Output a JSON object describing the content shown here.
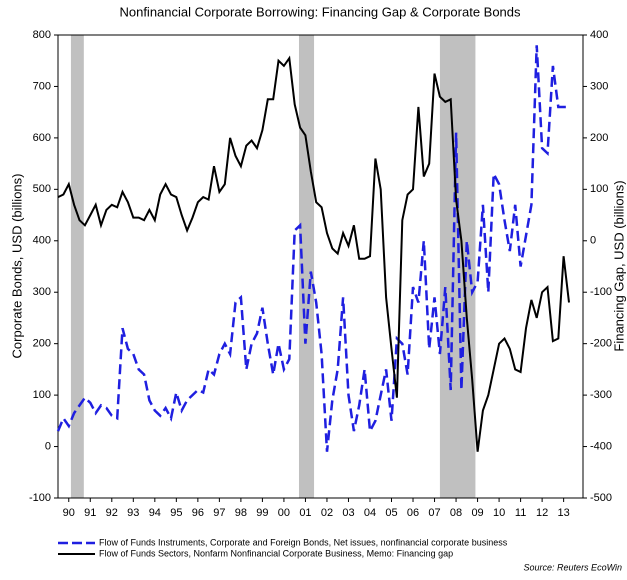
{
  "chart_data": {
    "type": "line",
    "title": "Nonfinancial Corporate Borrowing: Financing Gap & Corporate Bonds",
    "ylabel": "Corporate Bonds, USD (billions)",
    "y2label": "Financing Gap, USD (billions)",
    "source": "Source: Reuters EcoWin",
    "x": [
      1990,
      1990.25,
      1990.5,
      1990.75,
      1991,
      1991.25,
      1991.5,
      1991.75,
      1992,
      1992.25,
      1992.5,
      1992.75,
      1993,
      1993.25,
      1993.5,
      1993.75,
      1994,
      1994.25,
      1994.5,
      1994.75,
      1995,
      1995.25,
      1995.5,
      1995.75,
      1996,
      1996.25,
      1996.5,
      1996.75,
      1997,
      1997.25,
      1997.5,
      1997.75,
      1998,
      1998.25,
      1998.5,
      1998.75,
      1999,
      1999.25,
      1999.5,
      1999.75,
      2000,
      2000.25,
      2000.5,
      2000.75,
      2001,
      2001.25,
      2001.5,
      2001.75,
      2002,
      2002.25,
      2002.5,
      2002.75,
      2003,
      2003.25,
      2003.5,
      2003.75,
      2004,
      2004.25,
      2004.5,
      2004.75,
      2005,
      2005.25,
      2005.5,
      2005.75,
      2006,
      2006.25,
      2006.5,
      2006.75,
      2007,
      2007.25,
      2007.5,
      2007.75,
      2008,
      2008.25,
      2008.5,
      2008.75,
      2009,
      2009.25,
      2009.5,
      2009.75,
      2010,
      2010.25,
      2010.5,
      2010.75,
      2011,
      2011.25,
      2011.5,
      2011.75,
      2012,
      2012.25,
      2012.5,
      2012.75,
      2013,
      2013.25,
      2013.5,
      2013.75
    ],
    "series": [
      {
        "name": "Flow of Funds Instruments, Corporate and Foreign Bonds, Net issues, nonfinancial corporate business",
        "color": "#1f1fe0",
        "dashed": true,
        "values": [
          30,
          55,
          40,
          65,
          80,
          95,
          85,
          65,
          80,
          75,
          60,
          55,
          230,
          190,
          180,
          150,
          140,
          90,
          70,
          60,
          75,
          55,
          105,
          70,
          90,
          100,
          110,
          105,
          150,
          140,
          180,
          200,
          180,
          280,
          290,
          150,
          200,
          220,
          270,
          200,
          140,
          200,
          150,
          170,
          420,
          430,
          200,
          340,
          280,
          180,
          -10,
          90,
          150,
          290,
          100,
          30,
          80,
          150,
          30,
          50,
          100,
          150,
          50,
          210,
          200,
          140,
          310,
          280,
          400,
          190,
          290,
          180,
          310,
          110,
          610,
          110,
          400,
          300,
          320,
          470,
          300,
          530,
          510,
          440,
          380,
          470,
          350,
          410,
          470,
          780,
          580,
          570,
          740,
          660,
          660,
          660
        ]
      },
      {
        "name": "Flow of Funds Sectors, Nonfarm Nonfinancial Corporate Business, Memo: Financing gap",
        "color": "#000000",
        "dashed": false,
        "axis": "y2",
        "values": [
          85,
          90,
          110,
          70,
          40,
          30,
          50,
          70,
          30,
          60,
          70,
          65,
          95,
          75,
          45,
          45,
          40,
          60,
          40,
          90,
          110,
          90,
          85,
          50,
          20,
          45,
          75,
          85,
          80,
          145,
          95,
          110,
          200,
          165,
          145,
          185,
          195,
          180,
          215,
          275,
          275,
          350,
          340,
          355,
          265,
          220,
          205,
          135,
          75,
          65,
          15,
          -15,
          -25,
          15,
          -10,
          30,
          -35,
          -35,
          -30,
          160,
          100,
          -110,
          -210,
          -305,
          40,
          90,
          100,
          260,
          125,
          150,
          325,
          280,
          270,
          275,
          80,
          0,
          -150,
          -270,
          -410,
          -330,
          -300,
          -250,
          -200,
          -190,
          -210,
          -250,
          -255,
          -170,
          -115,
          -150,
          -100,
          -90,
          -195,
          -190,
          -30,
          -120
        ]
      }
    ],
    "shaded_periods": [
      [
        1990.6,
        1991.2
      ],
      [
        2001.2,
        2001.9
      ],
      [
        2007.75,
        2009.4
      ]
    ],
    "xlim": [
      1990,
      2014.4
    ],
    "xticks": [
      {
        "value": 1990.5,
        "label": "90"
      },
      {
        "value": 1991.5,
        "label": "91"
      },
      {
        "value": 1992.5,
        "label": "92"
      },
      {
        "value": 1993.5,
        "label": "93"
      },
      {
        "value": 1994.5,
        "label": "94"
      },
      {
        "value": 1995.5,
        "label": "95"
      },
      {
        "value": 1996.5,
        "label": "96"
      },
      {
        "value": 1997.5,
        "label": "97"
      },
      {
        "value": 1998.5,
        "label": "98"
      },
      {
        "value": 1999.5,
        "label": "99"
      },
      {
        "value": 2000.5,
        "label": "00"
      },
      {
        "value": 2001.5,
        "label": "01"
      },
      {
        "value": 2002.5,
        "label": "02"
      },
      {
        "value": 2003.5,
        "label": "03"
      },
      {
        "value": 2004.5,
        "label": "04"
      },
      {
        "value": 2005.5,
        "label": "05"
      },
      {
        "value": 2006.5,
        "label": "06"
      },
      {
        "value": 2007.5,
        "label": "07"
      },
      {
        "value": 2008.5,
        "label": "08"
      },
      {
        "value": 2009.5,
        "label": "09"
      },
      {
        "value": 2010.5,
        "label": "10"
      },
      {
        "value": 2011.5,
        "label": "11"
      },
      {
        "value": 2012.5,
        "label": "12"
      },
      {
        "value": 2013.5,
        "label": "13"
      }
    ],
    "ylim": [
      -100,
      800
    ],
    "yticks": [
      -100,
      0,
      100,
      200,
      300,
      400,
      500,
      600,
      700,
      800
    ],
    "y2lim": [
      -500,
      400
    ],
    "y2ticks": [
      -500,
      -400,
      -300,
      -200,
      -100,
      0,
      100,
      200,
      300,
      400
    ],
    "grid": false
  }
}
